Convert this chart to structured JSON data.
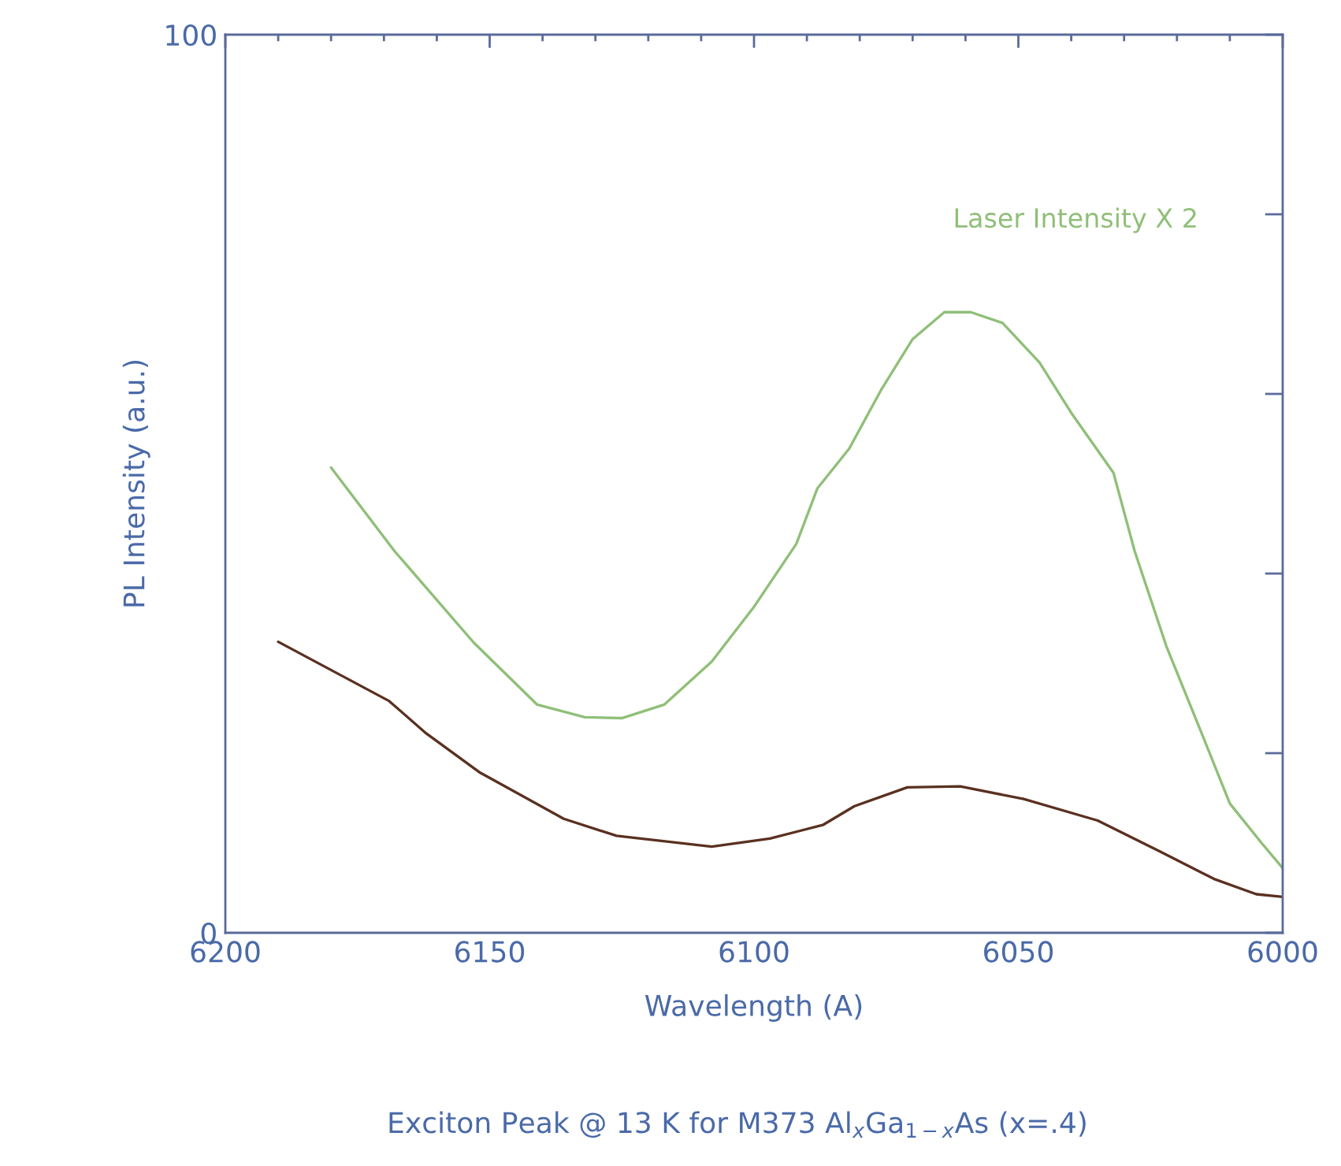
{
  "chart_data": {
    "type": "line",
    "xlabel": "Wavelength (A)",
    "ylabel": "PL Intensity (a.u.)",
    "annotations": [
      "Exciton Peak @ 13 K for M373 Al$_{x}$Ga$_{1−x}$As (x=.4)"
    ],
    "xlim": [
      6200,
      6000
    ],
    "ylim": [
      0,
      100
    ],
    "xticks": [
      6200,
      {
        "value": 6190,
        "label": null
      },
      {
        "value": 6180,
        "label": null
      },
      {
        "value": 6170,
        "label": null
      },
      {
        "value": 6160,
        "label": null
      },
      6150,
      {
        "value": 6140,
        "label": null
      },
      {
        "value": 6130,
        "label": null
      },
      {
        "value": 6120,
        "label": null
      },
      {
        "value": 6110,
        "label": null
      },
      6100,
      {
        "value": 6090,
        "label": null
      },
      {
        "value": 6080,
        "label": null
      },
      {
        "value": 6070,
        "label": null
      },
      {
        "value": 6060,
        "label": null
      },
      6050,
      {
        "value": 6040,
        "label": null
      },
      {
        "value": 6030,
        "label": null
      },
      {
        "value": 6020,
        "label": null
      },
      {
        "value": 6010,
        "label": null
      },
      6000
    ],
    "yticks": [
      0,
      {
        "value": 20,
        "label": null
      },
      {
        "value": 40,
        "label": null
      },
      {
        "value": 60,
        "label": null
      },
      {
        "value": 80,
        "label": null
      },
      100
    ],
    "grid": false,
    "legend": false,
    "marker": "none",
    "line_style": "solid",
    "series": [
      {
        "name": "Laser Intensity X 2",
        "color": "#8fbf78",
        "x": [
          6180,
          6168,
          6153,
          6141,
          6132,
          6125,
          6117,
          6108,
          6100,
          6092,
          6088,
          6082,
          6076,
          6070,
          6064,
          6059,
          6053,
          6046,
          6040,
          6032,
          6028,
          6022,
          6016,
          6010,
          6004,
          6000
        ],
        "values": [
          51.8,
          42.5,
          32.3,
          25.4,
          24,
          23.9,
          25.4,
          30.2,
          36.3,
          43.3,
          49.5,
          53.9,
          60.4,
          66.1,
          69.1,
          69.1,
          67.9,
          63.5,
          57.9,
          51.2,
          42.5,
          31.9,
          23.2,
          14.4,
          10,
          7.2
        ]
      },
      {
        "color": "#5a3020",
        "x": [
          6190,
          6169,
          6162,
          6152,
          6136,
          6126,
          6108,
          6097,
          6087,
          6081,
          6071,
          6061,
          6049,
          6035,
          6023,
          6013,
          6005,
          6000
        ],
        "values": [
          32.4,
          25.8,
          22.2,
          17.9,
          12.7,
          10.8,
          9.6,
          10.5,
          12,
          14.1,
          16.2,
          16.3,
          14.9,
          12.5,
          9,
          6,
          4.3,
          4.0
        ]
      }
    ]
  }
}
